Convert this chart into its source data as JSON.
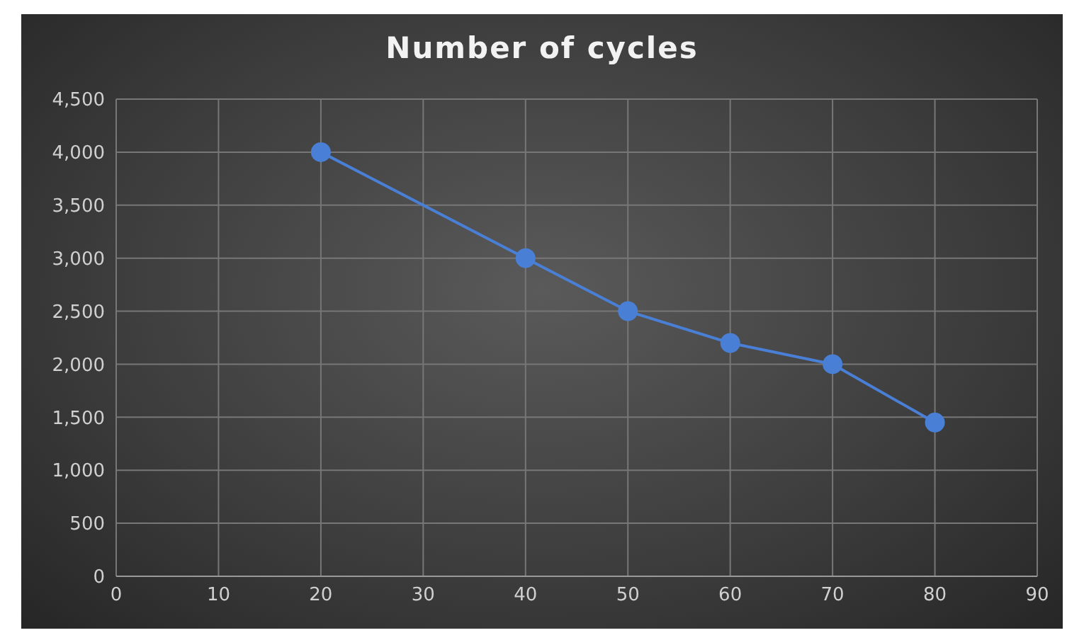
{
  "chart_data": {
    "type": "line",
    "title": "Number of cycles",
    "x": [
      20,
      40,
      50,
      60,
      70,
      80
    ],
    "series": [
      {
        "color": "#4a7fd6",
        "values": [
          4000,
          3000,
          2500,
          2200,
          2000,
          1450
        ]
      }
    ],
    "xlim": [
      0,
      90
    ],
    "xticks": [
      0,
      10,
      20,
      30,
      40,
      50,
      60,
      70,
      80,
      90
    ],
    "ylim": [
      0,
      4500
    ],
    "yticks": [
      0,
      500,
      {
        "value": 1000,
        "label": "1,000"
      },
      {
        "value": 1500,
        "label": "1,500"
      },
      {
        "value": 2000,
        "label": "2,000"
      },
      {
        "value": 2500,
        "label": "2,500"
      },
      {
        "value": 3000,
        "label": "3,000"
      },
      {
        "value": 3500,
        "label": "3,500"
      },
      {
        "value": 4000,
        "label": "4,000"
      },
      {
        "value": 4500,
        "label": "4,500"
      }
    ],
    "grid": true,
    "marker": "circle",
    "line_style": "solid"
  }
}
